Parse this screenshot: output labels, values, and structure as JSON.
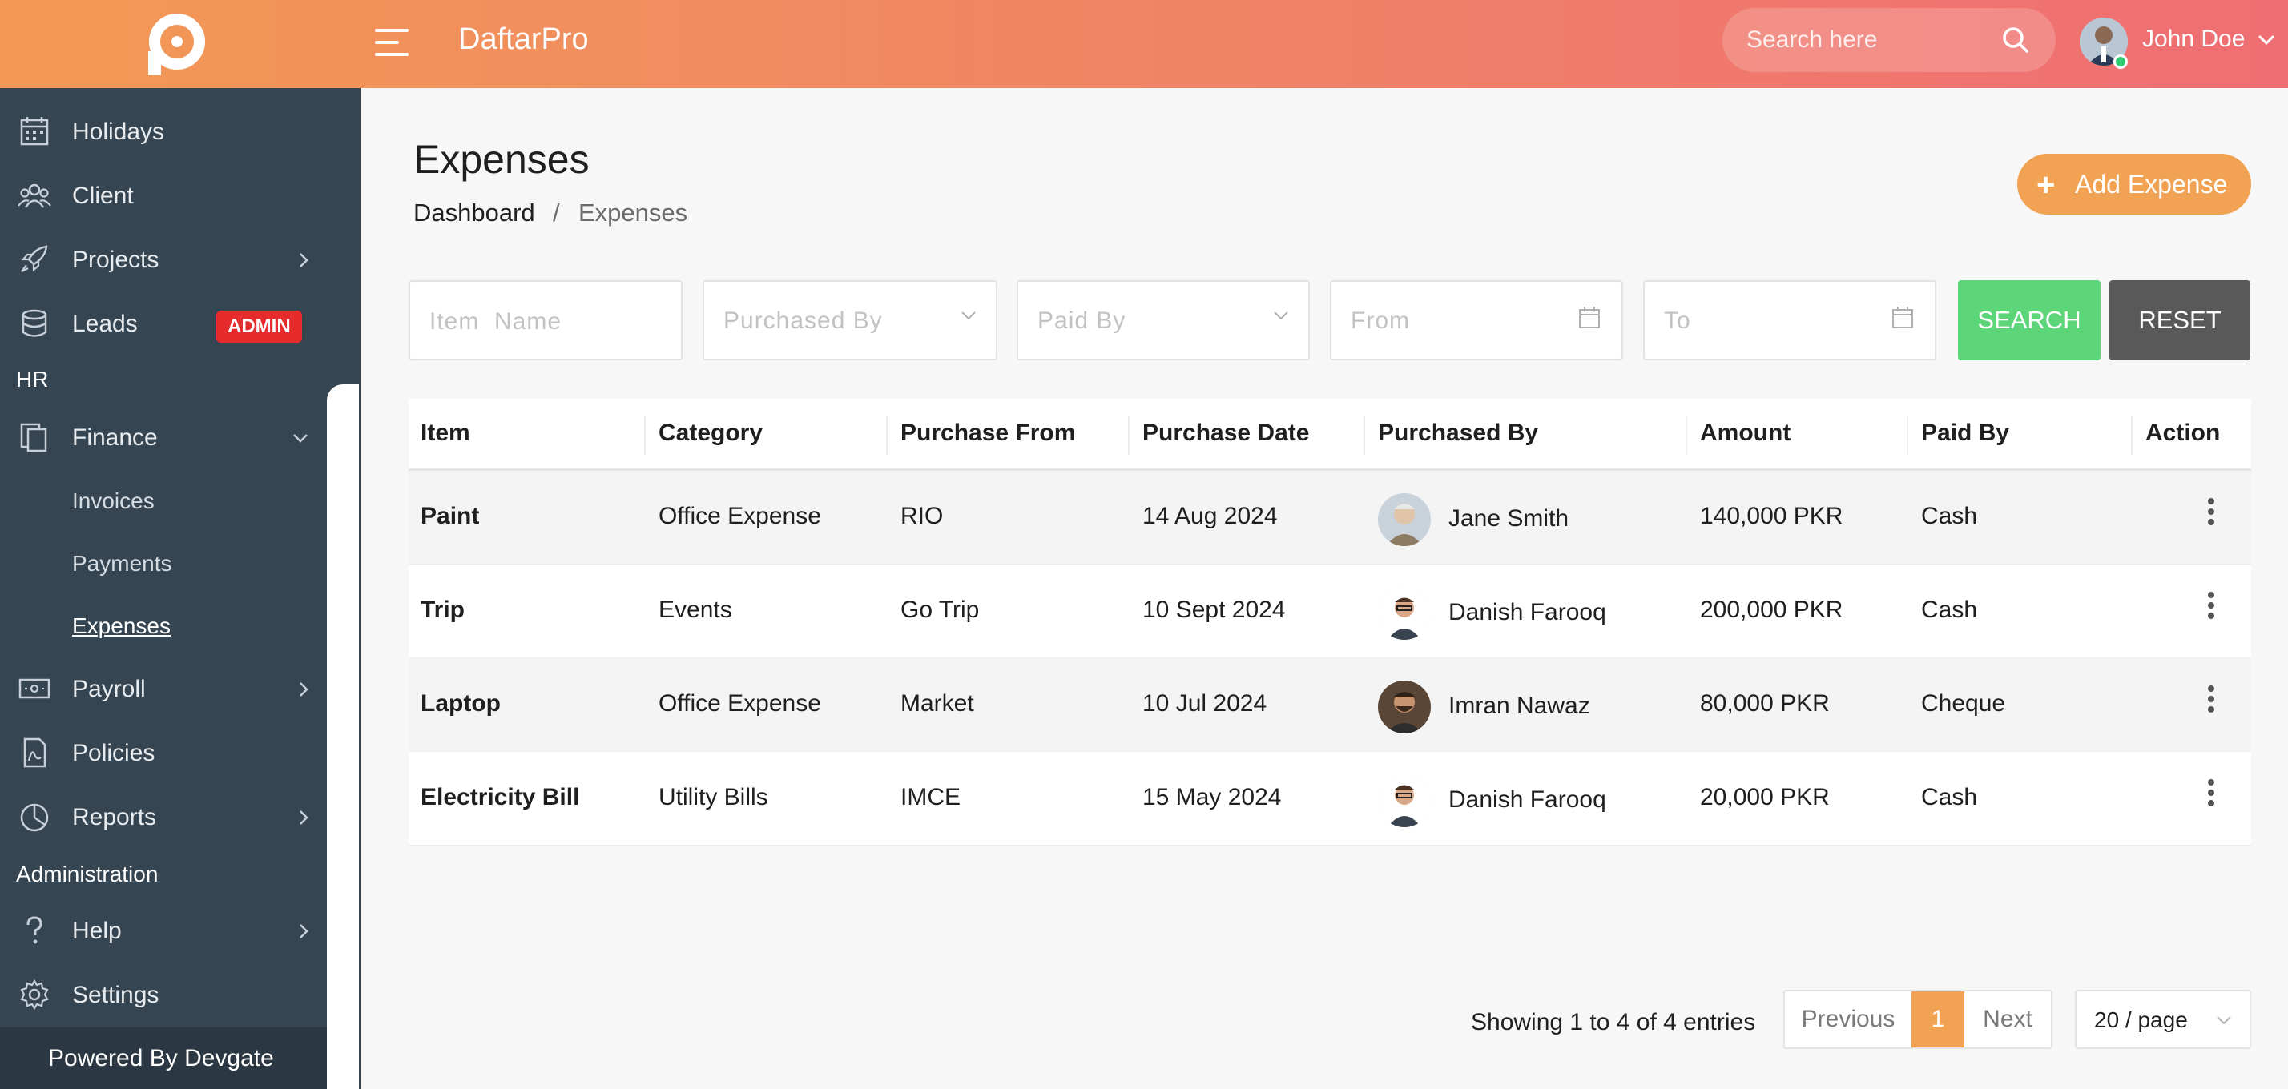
{
  "header": {
    "brand": "DaftarPro",
    "search_placeholder": "Search here",
    "user_name": "John Doe"
  },
  "sidebar": {
    "items_top": [
      {
        "label": "Holidays",
        "icon": "calendar-icon"
      },
      {
        "label": "Client",
        "icon": "users-icon"
      },
      {
        "label": "Projects",
        "icon": "rocket-icon"
      },
      {
        "label": "Leads",
        "icon": "database-icon",
        "badge": "ADMIN"
      }
    ],
    "section_hr": "HR",
    "finance": {
      "label": "Finance",
      "icon": "copy-icon",
      "sub": [
        "Invoices",
        "Payments",
        "Expenses"
      ]
    },
    "items_mid": [
      {
        "label": "Payroll",
        "icon": "money-icon"
      },
      {
        "label": "Policies",
        "icon": "document-icon"
      },
      {
        "label": "Reports",
        "icon": "pie-chart-icon"
      }
    ],
    "section_admin": "Administration",
    "items_bottom": [
      {
        "label": "Help",
        "icon": "question-icon"
      },
      {
        "label": "Settings",
        "icon": "gear-icon"
      }
    ],
    "powered_by": "Powered By Devgate"
  },
  "page": {
    "title": "Expenses",
    "breadcrumb_home": "Dashboard",
    "breadcrumb_sep": "/",
    "breadcrumb_current": "Expenses",
    "add_button": "Add Expense"
  },
  "filters": {
    "item_name": "Item  Name",
    "purchased_by": "Purchased  By",
    "paid_by": "Paid  By",
    "from": "From",
    "to": "To",
    "search_button": "SEARCH",
    "reset_button": "RESET"
  },
  "table": {
    "columns": [
      "Item",
      "Category",
      "Purchase From",
      "Purchase Date",
      "Purchased By",
      "Amount",
      "Paid By",
      "Action"
    ],
    "rows": [
      {
        "item": "Paint",
        "category": "Office Expense",
        "from": "RIO",
        "date": "14 Aug 2024",
        "by": "Jane Smith",
        "amount": "140,000 PKR",
        "paid_by": "Cash"
      },
      {
        "item": "Trip",
        "category": "Events",
        "from": "Go Trip",
        "date": "10 Sept 2024",
        "by": "Danish Farooq",
        "amount": "200,000 PKR",
        "paid_by": "Cash"
      },
      {
        "item": "Laptop",
        "category": "Office Expense",
        "from": "Market",
        "date": "10 Jul 2024",
        "by": "Imran Nawaz",
        "amount": "80,000 PKR",
        "paid_by": "Cheque"
      },
      {
        "item": "Electricity Bill",
        "category": "Utility Bills",
        "from": "IMCE",
        "date": "15 May 2024",
        "by": "Danish Farooq",
        "amount": "20,000 PKR",
        "paid_by": "Cash"
      }
    ]
  },
  "pagination": {
    "showing": "Showing 1 to 4 of 4 entries",
    "previous": "Previous",
    "current": "1",
    "next": "Next",
    "per_page": "20  /  page"
  },
  "colors": {
    "accent": "#f2a253",
    "header_start": "#f29a55",
    "header_end": "#ef6e73",
    "sidebar_bg": "#354552",
    "search_btn": "#5cd678",
    "reset_btn": "#595959",
    "admin_badge": "#e52b2b"
  }
}
